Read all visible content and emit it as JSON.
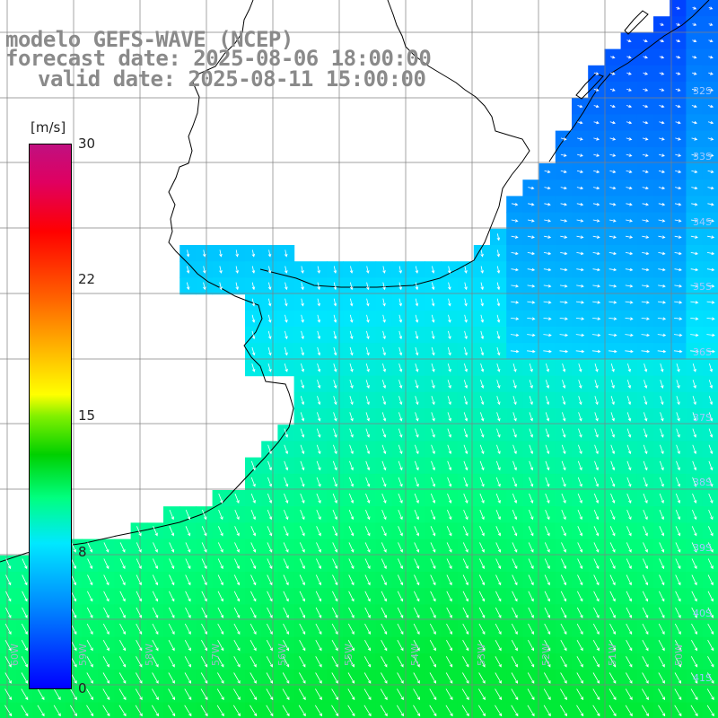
{
  "title": {
    "line1": "modelo GEFS-WAVE (NCEP)",
    "line2": "forecast date: 2025-08-06 18:00:00",
    "line3": "valid date: 2025-08-11 15:00:00"
  },
  "colorbar": {
    "unit": "[m/s]",
    "ticks": [
      "30",
      "22",
      "15",
      "8",
      "0"
    ],
    "range": [
      0,
      30
    ],
    "colors": [
      "#0000ff",
      "#00e8ff",
      "#00d000",
      "#ffff00",
      "#ff0000",
      "#c01080"
    ]
  },
  "lat_labels": [
    "32S",
    "33S",
    "34S",
    "35S",
    "36S",
    "37S",
    "38S",
    "39S",
    "40S",
    "41S"
  ],
  "lon_labels": [
    "60W",
    "59W",
    "58W",
    "57W",
    "56W",
    "55W",
    "54W",
    "53W",
    "52W",
    "51W",
    "50W"
  ],
  "land_color": "#ffffff",
  "grid_color": "#808080"
}
